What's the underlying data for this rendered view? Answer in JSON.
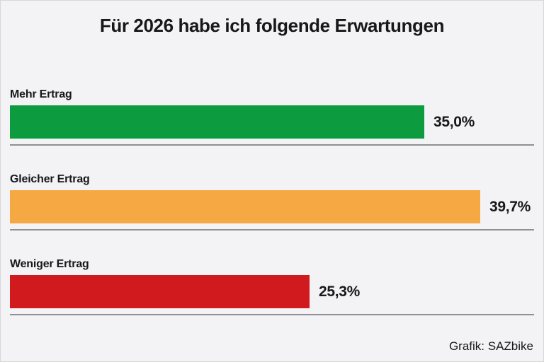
{
  "header": {
    "title": "Für 2026 habe ich folgende Erwartungen"
  },
  "footer": {
    "credit": "Grafik: SAZbike"
  },
  "chart_data": {
    "type": "bar",
    "orientation": "horizontal",
    "title": "Für 2026 habe ich folgende Erwartungen",
    "categories": [
      "Mehr Ertrag",
      "Gleicher Ertrag",
      "Weniger Ertrag"
    ],
    "values": [
      35.0,
      39.7,
      25.3
    ],
    "value_labels": [
      "35,0%",
      "39,7%",
      "25,3%"
    ],
    "colors": [
      "#0d9b3f",
      "#f6a843",
      "#d11a1e"
    ],
    "xlim": [
      0,
      44
    ],
    "grid": false,
    "legend": false,
    "unit": "%",
    "label_position": "above-bar",
    "value_position": "right-of-bar",
    "source": "Grafik: SAZbike"
  },
  "style": {
    "background": "#f3f3f6",
    "separator_color": "#8f8f96",
    "text_color": "#17171c"
  }
}
